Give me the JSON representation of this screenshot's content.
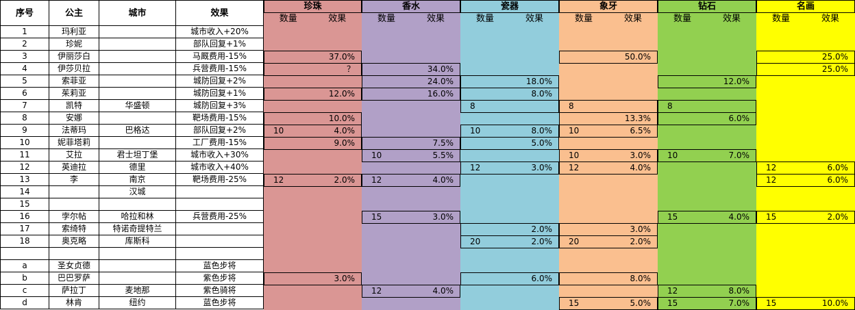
{
  "header": {
    "columns": [
      "序号",
      "公主",
      "城市",
      "效果"
    ],
    "groups": [
      {
        "name": "珍珠",
        "color": "#da9694"
      },
      {
        "name": "香水",
        "color": "#b1a0c7"
      },
      {
        "name": "瓷器",
        "color": "#92cddc"
      },
      {
        "name": "象牙",
        "color": "#fabf8f"
      },
      {
        "name": "钻石",
        "color": "#92d050"
      },
      {
        "name": "名画",
        "color": "#ffff00"
      }
    ],
    "sub": [
      "数量",
      "效果"
    ]
  },
  "rows": [
    {
      "id": "1",
      "princess": "玛利亚",
      "city": null,
      "effect": "城市收入+20%",
      "goods": [
        [
          null,
          null
        ],
        [
          null,
          null
        ],
        [
          null,
          null
        ],
        [
          null,
          null
        ],
        [
          null,
          null
        ],
        [
          null,
          null
        ]
      ]
    },
    {
      "id": "2",
      "princess": "珍妮",
      "city": null,
      "effect": "部队回复+1%",
      "goods": [
        [
          null,
          null
        ],
        [
          null,
          null
        ],
        [
          null,
          null
        ],
        [
          null,
          null
        ],
        [
          null,
          null
        ],
        [
          null,
          null
        ]
      ]
    },
    {
      "id": "3",
      "princess": "伊丽莎白",
      "city": null,
      "effect": "马厩费用-15%",
      "goods": [
        [
          null,
          "37.0%"
        ],
        [
          null,
          null
        ],
        [
          null,
          null
        ],
        [
          null,
          "50.0%"
        ],
        [
          null,
          null
        ],
        [
          null,
          "25.0%"
        ]
      ]
    },
    {
      "id": "4",
      "princess": "伊莎贝拉",
      "city": null,
      "effect": "兵营费用-15%",
      "goods": [
        [
          null,
          "？"
        ],
        [
          null,
          "34.0%"
        ],
        [
          null,
          null
        ],
        [
          null,
          null
        ],
        [
          null,
          null
        ],
        [
          null,
          "25.0%"
        ]
      ]
    },
    {
      "id": "5",
      "princess": "索菲亚",
      "city": null,
      "effect": "城防回复+2%",
      "goods": [
        [
          null,
          null
        ],
        [
          null,
          "24.0%"
        ],
        [
          null,
          "18.0%"
        ],
        [
          null,
          null
        ],
        [
          null,
          "12.0%"
        ],
        [
          null,
          null
        ]
      ]
    },
    {
      "id": "6",
      "princess": "茱莉亚",
      "city": null,
      "effect": "城防回复+1%",
      "goods": [
        [
          null,
          "12.0%"
        ],
        [
          null,
          "16.0%"
        ],
        [
          null,
          "8.0%"
        ],
        [
          null,
          null
        ],
        [
          null,
          null
        ],
        [
          null,
          null
        ]
      ]
    },
    {
      "id": "7",
      "princess": "凯特",
      "city": "华盛顿",
      "effect": "城防回复+3%",
      "goods": [
        [
          null,
          null
        ],
        [
          null,
          null
        ],
        [
          8,
          null
        ],
        [
          8,
          null
        ],
        [
          8,
          null
        ],
        [
          null,
          null
        ]
      ]
    },
    {
      "id": "8",
      "princess": "安娜",
      "city": null,
      "effect": "靶场费用-15%",
      "goods": [
        [
          null,
          "10.0%"
        ],
        [
          null,
          null
        ],
        [
          null,
          null
        ],
        [
          null,
          "13.3%"
        ],
        [
          null,
          "6.0%"
        ],
        [
          null,
          null
        ]
      ]
    },
    {
      "id": "9",
      "princess": "法蒂玛",
      "city": "巴格达",
      "effect": "部队回复+2%",
      "goods": [
        [
          10,
          "4.0%"
        ],
        [
          null,
          null
        ],
        [
          10,
          "8.0%"
        ],
        [
          10,
          "6.5%"
        ],
        [
          null,
          null
        ],
        [
          null,
          null
        ]
      ]
    },
    {
      "id": "10",
      "princess": "妮菲塔莉",
      "city": null,
      "effect": "工厂费用-15%",
      "goods": [
        [
          null,
          "9.0%"
        ],
        [
          null,
          "7.5%"
        ],
        [
          null,
          "5.0%"
        ],
        [
          null,
          null
        ],
        [
          null,
          null
        ],
        [
          null,
          null
        ]
      ]
    },
    {
      "id": "11",
      "princess": "艾拉",
      "city": "君士坦丁堡",
      "effect": "城市收入+30%",
      "goods": [
        [
          null,
          null
        ],
        [
          10,
          "5.5%"
        ],
        [
          null,
          null
        ],
        [
          10,
          "3.0%"
        ],
        [
          10,
          "7.0%"
        ],
        [
          null,
          null
        ]
      ]
    },
    {
      "id": "12",
      "princess": "英迪拉",
      "city": "德里",
      "effect": "城市收入+40%",
      "goods": [
        [
          null,
          null
        ],
        [
          null,
          null
        ],
        [
          12,
          "3.0%"
        ],
        [
          12,
          "4.0%"
        ],
        [
          null,
          null
        ],
        [
          12,
          "6.0%"
        ]
      ]
    },
    {
      "id": "13",
      "princess": "李",
      "city": "南京",
      "effect": "靶场费用-25%",
      "goods": [
        [
          12,
          "2.0%"
        ],
        [
          12,
          "4.0%"
        ],
        [
          null,
          null
        ],
        [
          null,
          null
        ],
        [
          null,
          null
        ],
        [
          12,
          "6.0%"
        ]
      ]
    },
    {
      "id": "14",
      "princess": null,
      "city": "汉城",
      "effect": null,
      "goods": [
        [
          null,
          null
        ],
        [
          null,
          null
        ],
        [
          null,
          null
        ],
        [
          null,
          null
        ],
        [
          null,
          null
        ],
        [
          null,
          null
        ]
      ]
    },
    {
      "id": "15",
      "princess": null,
      "city": null,
      "effect": null,
      "goods": [
        [
          null,
          null
        ],
        [
          null,
          null
        ],
        [
          null,
          null
        ],
        [
          null,
          null
        ],
        [
          null,
          null
        ],
        [
          null,
          null
        ]
      ]
    },
    {
      "id": "16",
      "princess": "孛尔帖",
      "city": "哈拉和林",
      "effect": "兵营费用-25%",
      "goods": [
        [
          null,
          null
        ],
        [
          15,
          "3.0%"
        ],
        [
          null,
          null
        ],
        [
          null,
          null
        ],
        [
          15,
          "4.0%"
        ],
        [
          15,
          "2.0%"
        ]
      ]
    },
    {
      "id": "17",
      "princess": "索绮特",
      "city": "特诺奇提特兰",
      "effect": null,
      "goods": [
        [
          null,
          null
        ],
        [
          null,
          null
        ],
        [
          null,
          "2.0%"
        ],
        [
          null,
          "3.0%"
        ],
        [
          null,
          null
        ],
        [
          null,
          null
        ]
      ]
    },
    {
      "id": "18",
      "princess": "奥克略",
      "city": "库斯科",
      "effect": null,
      "goods": [
        [
          null,
          null
        ],
        [
          null,
          null
        ],
        [
          20,
          "2.0%"
        ],
        [
          20,
          "2.0%"
        ],
        [
          null,
          null
        ],
        [
          null,
          null
        ]
      ]
    },
    {
      "id": null,
      "princess": null,
      "city": null,
      "effect": null,
      "goods": [
        [
          null,
          null
        ],
        [
          null,
          null
        ],
        [
          null,
          null
        ],
        [
          null,
          null
        ],
        [
          null,
          null
        ],
        [
          null,
          null
        ]
      ]
    },
    {
      "id": "a",
      "princess": "圣女贞德",
      "city": null,
      "effect": "蓝色步将",
      "goods": [
        [
          null,
          null
        ],
        [
          null,
          null
        ],
        [
          null,
          null
        ],
        [
          null,
          null
        ],
        [
          null,
          null
        ],
        [
          null,
          null
        ]
      ]
    },
    {
      "id": "b",
      "princess": "巴巴罗萨",
      "city": null,
      "effect": "紫色步将",
      "goods": [
        [
          null,
          "3.0%"
        ],
        [
          null,
          null
        ],
        [
          null,
          "6.0%"
        ],
        [
          null,
          "8.0%"
        ],
        [
          null,
          null
        ],
        [
          null,
          null
        ]
      ]
    },
    {
      "id": "c",
      "princess": "萨拉丁",
      "city": "麦地那",
      "effect": "紫色骑将",
      "goods": [
        [
          null,
          null
        ],
        [
          12,
          "4.0%"
        ],
        [
          null,
          null
        ],
        [
          null,
          null
        ],
        [
          12,
          "8.0%"
        ],
        [
          null,
          null
        ]
      ]
    },
    {
      "id": "d",
      "princess": "林肯",
      "city": "纽约",
      "effect": "蓝色步将",
      "goods": [
        [
          null,
          null
        ],
        [
          null,
          null
        ],
        [
          null,
          null
        ],
        [
          15,
          "5.0%"
        ],
        [
          15,
          "7.0%"
        ],
        [
          15,
          "10.0%"
        ]
      ]
    }
  ]
}
